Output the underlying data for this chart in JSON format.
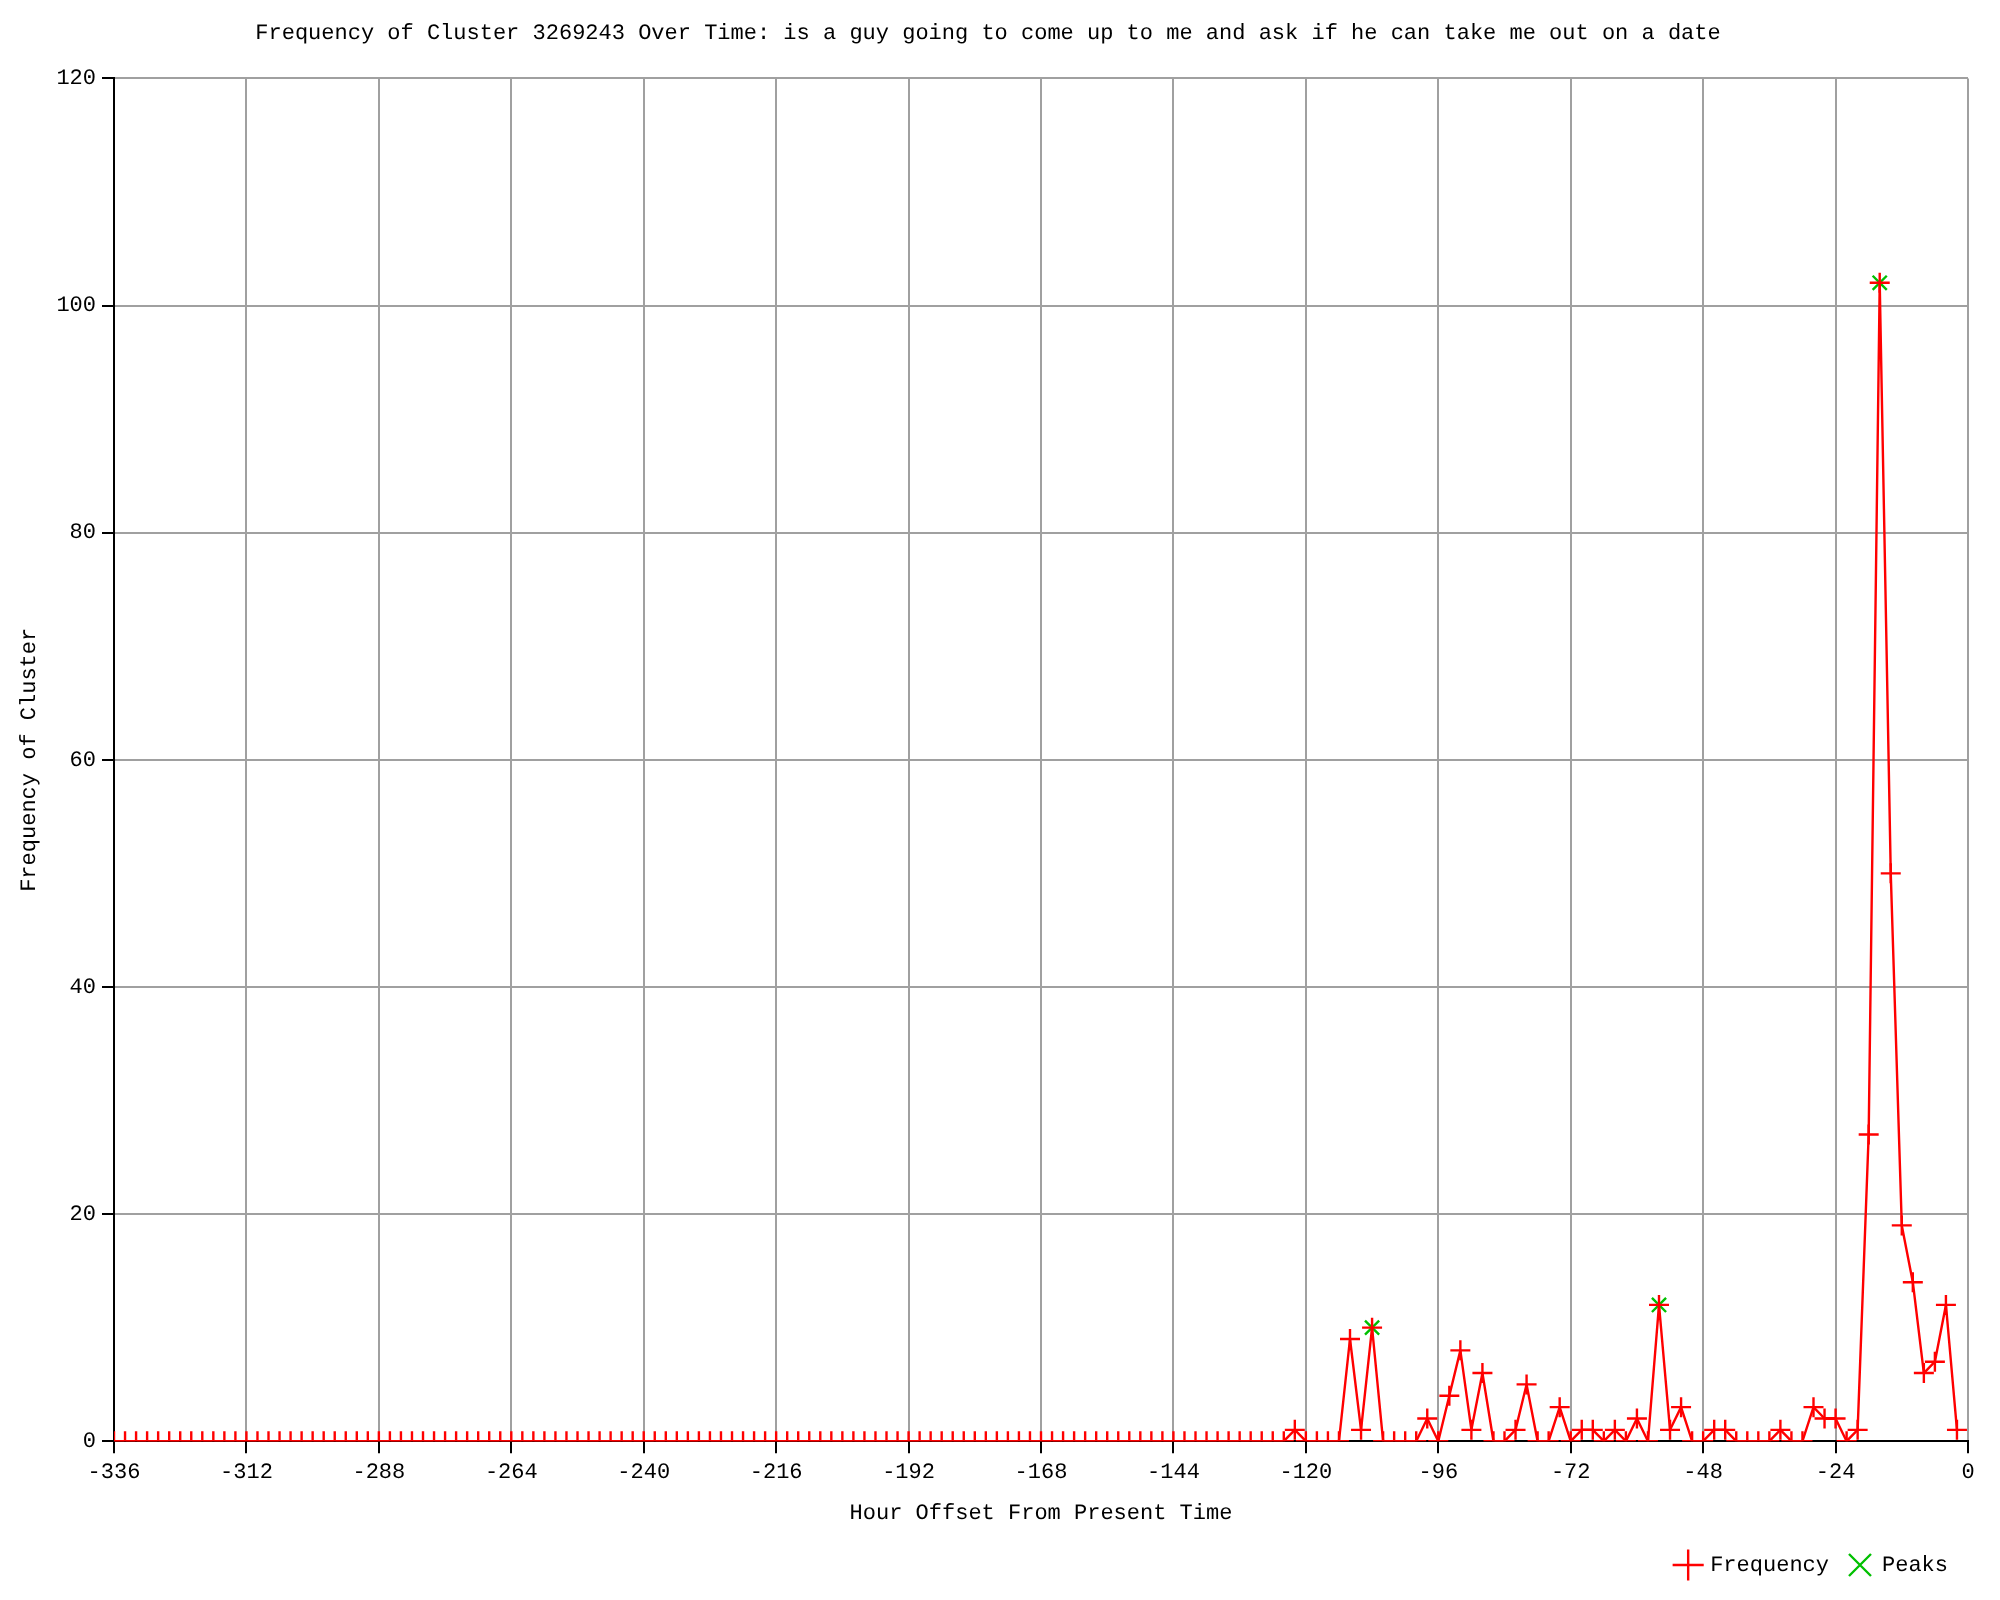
{
  "chart_data": {
    "type": "line",
    "title": "Frequency of Cluster 3269243 Over Time: is a guy going to come up to me and ask if he can take me out on a date",
    "xlabel": "Hour Offset From Present Time",
    "ylabel": "Frequency of Cluster",
    "xlim": [
      -336,
      0
    ],
    "xticks": [
      -336,
      -312,
      -288,
      -264,
      -240,
      -216,
      -192,
      -168,
      -144,
      -120,
      -96,
      -72,
      -48,
      -24,
      0
    ],
    "ylim": [
      0,
      120
    ],
    "yticks": [
      0,
      20,
      40,
      60,
      80,
      100,
      120
    ],
    "grid": true,
    "legend": "bottom right",
    "series": [
      {
        "name": "Frequency",
        "color": "#ff0000",
        "marker": "cross",
        "line_style": "solid",
        "x": [
          -336,
          -334,
          -332,
          -330,
          -328,
          -326,
          -324,
          -322,
          -320,
          -318,
          -316,
          -314,
          -312,
          -310,
          -308,
          -306,
          -304,
          -302,
          -300,
          -298,
          -296,
          -294,
          -292,
          -290,
          -288,
          -286,
          -284,
          -282,
          -280,
          -278,
          -276,
          -274,
          -272,
          -270,
          -268,
          -266,
          -264,
          -262,
          -260,
          -258,
          -256,
          -254,
          -252,
          -250,
          -248,
          -246,
          -244,
          -242,
          -240,
          -238,
          -236,
          -234,
          -232,
          -230,
          -228,
          -226,
          -224,
          -222,
          -220,
          -218,
          -216,
          -214,
          -212,
          -210,
          -208,
          -206,
          -204,
          -202,
          -200,
          -198,
          -196,
          -194,
          -192,
          -190,
          -188,
          -186,
          -184,
          -182,
          -180,
          -178,
          -176,
          -174,
          -172,
          -170,
          -168,
          -166,
          -164,
          -162,
          -160,
          -158,
          -156,
          -154,
          -152,
          -150,
          -148,
          -146,
          -144,
          -142,
          -140,
          -138,
          -136,
          -134,
          -132,
          -130,
          -128,
          -126,
          -124,
          -122,
          -120,
          -118,
          -116,
          -114,
          -112,
          -110,
          -108,
          -106,
          -104,
          -102,
          -100,
          -98,
          -96,
          -94,
          -92,
          -90,
          -88,
          -86,
          -84,
          -82,
          -80,
          -78,
          -76,
          -74,
          -72,
          -70,
          -68,
          -66,
          -64,
          -62,
          -60,
          -58,
          -56,
          -54,
          -52,
          -50,
          -48,
          -46,
          -44,
          -42,
          -40,
          -38,
          -36,
          -34,
          -32,
          -30,
          -28,
          -26,
          -24,
          -22,
          -20,
          -18,
          -16,
          -14,
          -12,
          -10,
          -8,
          -6,
          -4,
          -2
        ],
        "values": [
          0,
          0,
          0,
          0,
          0,
          0,
          0,
          0,
          0,
          0,
          0,
          0,
          0,
          0,
          0,
          0,
          0,
          0,
          0,
          0,
          0,
          0,
          0,
          0,
          0,
          0,
          0,
          0,
          0,
          0,
          0,
          0,
          0,
          0,
          0,
          0,
          0,
          0,
          0,
          0,
          0,
          0,
          0,
          0,
          0,
          0,
          0,
          0,
          0,
          0,
          0,
          0,
          0,
          0,
          0,
          0,
          0,
          0,
          0,
          0,
          0,
          0,
          0,
          0,
          0,
          0,
          0,
          0,
          0,
          0,
          0,
          0,
          0,
          0,
          0,
          0,
          0,
          0,
          0,
          0,
          0,
          0,
          0,
          0,
          0,
          0,
          0,
          0,
          0,
          0,
          0,
          0,
          0,
          0,
          0,
          0,
          0,
          0,
          0,
          0,
          0,
          0,
          0,
          0,
          0,
          0,
          0,
          1,
          0,
          0,
          0,
          0,
          9,
          1,
          10,
          0,
          0,
          0,
          0,
          2,
          0,
          4,
          8,
          1,
          6,
          0,
          0,
          1,
          5,
          0,
          0,
          3,
          0,
          1,
          1,
          0,
          1,
          0,
          2,
          0,
          12,
          1,
          3,
          0,
          0,
          1,
          1,
          0,
          0,
          0,
          0,
          1,
          0,
          0,
          3,
          2,
          2,
          0,
          1,
          27,
          102,
          50,
          19,
          14,
          6,
          7,
          12,
          1
        ]
      },
      {
        "name": "Peaks",
        "type": "scatter",
        "color": "#00c000",
        "marker": "cross",
        "x": [
          -108,
          -56,
          -16
        ],
        "values": [
          10,
          12,
          102
        ]
      }
    ]
  }
}
